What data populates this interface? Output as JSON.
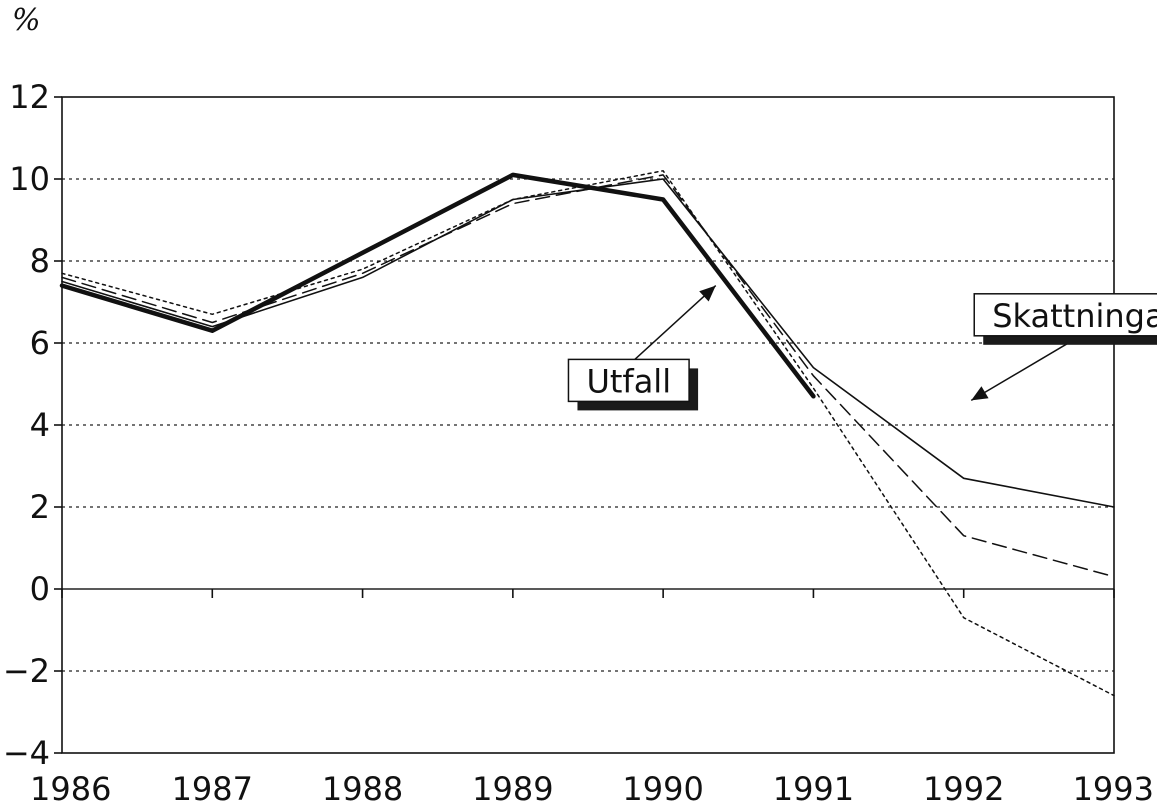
{
  "chart_data": {
    "type": "line",
    "title": "",
    "xlabel": "",
    "ylabel": "%",
    "x": [
      1986,
      1987,
      1988,
      1989,
      1990,
      1991,
      1992,
      1993
    ],
    "x_tick_labels": [
      "1986",
      "1987",
      "1988",
      "1989",
      "1990",
      "1991",
      "1992",
      "1993"
    ],
    "y_tick_labels": [
      "12",
      "10",
      "8",
      "6",
      "4",
      "2",
      "0",
      "−2",
      "−4"
    ],
    "y_ticks": [
      12,
      10,
      8,
      6,
      4,
      2,
      0,
      -2,
      -4
    ],
    "xlim": [
      1986,
      1993
    ],
    "ylim": [
      -4,
      12
    ],
    "grid": "horizontal dotted",
    "series": [
      {
        "style": "thick-solid",
        "color": "#111111",
        "x": [
          1986,
          1987,
          1988,
          1989,
          1990,
          1991
        ],
        "values": [
          7.4,
          6.3,
          8.2,
          10.1,
          9.5,
          4.7
        ]
      },
      {
        "style": "thin-solid",
        "color": "#111111",
        "x": [
          1986,
          1987,
          1988,
          1989,
          1990,
          1991,
          1992,
          1993
        ],
        "values": [
          7.5,
          6.4,
          7.6,
          9.5,
          10.0,
          5.4,
          2.7,
          2.0
        ]
      },
      {
        "style": "dashed",
        "color": "#111111",
        "x": [
          1986,
          1987,
          1988,
          1989,
          1990,
          1991,
          1992,
          1993
        ],
        "values": [
          7.6,
          6.5,
          7.7,
          9.4,
          10.1,
          5.2,
          1.3,
          0.3
        ]
      },
      {
        "style": "dotted",
        "color": "#111111",
        "x": [
          1986,
          1987,
          1988,
          1989,
          1990,
          1991,
          1992,
          1993
        ],
        "values": [
          7.7,
          6.7,
          7.8,
          9.5,
          10.2,
          4.9,
          -0.7,
          -2.6
        ]
      }
    ],
    "annotations": [
      {
        "text": "Utfall",
        "anchor_x": 1990.35,
        "anchor_y": 7.4,
        "box_x": 1989.37,
        "box_y": 5.6
      },
      {
        "text": "Skattningar",
        "anchor_x": 1992.05,
        "anchor_y": 4.6,
        "box_x": 1992.07,
        "box_y": 7.2
      }
    ]
  }
}
